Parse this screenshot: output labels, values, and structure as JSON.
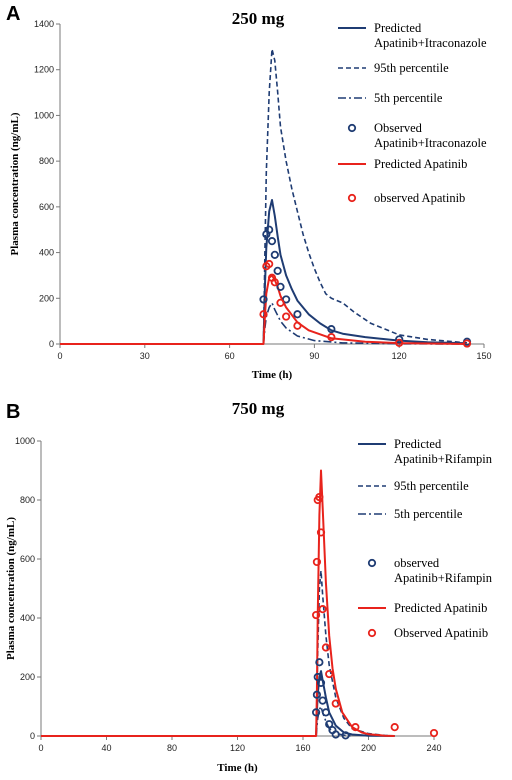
{
  "chart_data": [
    {
      "panel_label": "A",
      "type": "line",
      "title": "250 mg",
      "xlabel": "Time (h)",
      "ylabel": "Plasma concentration (ng/mL)",
      "xlim": [
        0,
        150
      ],
      "ylim": [
        0,
        1400
      ],
      "xticks": [
        0,
        30,
        60,
        90,
        120,
        150
      ],
      "yticks": [
        0,
        200,
        400,
        600,
        800,
        1000,
        1200,
        1400
      ],
      "grid": false,
      "legend_position": "right",
      "series": [
        {
          "name": "Predicted Apatinib+Itraconazole",
          "style": "solid",
          "color": "#1f3c73",
          "x": [
            72,
            72.5,
            73,
            74,
            75,
            76,
            77,
            78,
            80,
            82,
            84,
            88,
            92,
            96,
            100,
            108,
            120,
            130,
            144
          ],
          "y": [
            0,
            250,
            420,
            580,
            630,
            560,
            470,
            390,
            300,
            240,
            190,
            130,
            90,
            60,
            45,
            30,
            15,
            8,
            3
          ]
        },
        {
          "name": "95th percentile",
          "style": "dashed",
          "color": "#1f3c73",
          "x": [
            72,
            72.5,
            73,
            74,
            75,
            76,
            77,
            78,
            80,
            82,
            84,
            86,
            88,
            90,
            92,
            94,
            96,
            100,
            104,
            110,
            120,
            130,
            144
          ],
          "y": [
            0,
            400,
            750,
            1100,
            1290,
            1240,
            1100,
            950,
            800,
            680,
            580,
            480,
            400,
            330,
            270,
            220,
            200,
            180,
            140,
            90,
            40,
            20,
            5
          ]
        },
        {
          "name": "5th percentile",
          "style": "dashdot",
          "color": "#1f3c73",
          "x": [
            72,
            72.5,
            73,
            74,
            75,
            76,
            78,
            80,
            84,
            90,
            100,
            120,
            144
          ],
          "y": [
            0,
            70,
            120,
            160,
            180,
            150,
            100,
            70,
            35,
            15,
            5,
            1,
            0
          ]
        },
        {
          "name": "Observed Apatinib+Itraconazole",
          "style": "markers",
          "color": "#1f3c73",
          "x": [
            72,
            73,
            74,
            75,
            76,
            77,
            78,
            80,
            84,
            96,
            120,
            144
          ],
          "y": [
            195,
            480,
            500,
            450,
            390,
            320,
            250,
            195,
            130,
            65,
            20,
            10
          ]
        },
        {
          "name": "Predicted Apatinib",
          "style": "solid",
          "color": "#e8231c",
          "x": [
            0,
            72,
            72.5,
            73,
            74,
            75,
            76,
            77,
            78,
            80,
            84,
            88,
            96,
            108,
            120,
            144
          ],
          "y": [
            0,
            0,
            120,
            220,
            290,
            300,
            280,
            250,
            210,
            160,
            95,
            60,
            25,
            10,
            4,
            0
          ]
        },
        {
          "name": "observed Apatinib",
          "style": "markers",
          "color": "#e8231c",
          "x": [
            72,
            73,
            74,
            75,
            76,
            78,
            80,
            84,
            96,
            120,
            144
          ],
          "y": [
            130,
            340,
            350,
            290,
            270,
            180,
            120,
            80,
            30,
            5,
            2
          ]
        }
      ]
    },
    {
      "panel_label": "B",
      "type": "line",
      "title": "750 mg",
      "xlabel": "Time (h)",
      "ylabel": "Plasma concentration (ng/mL)",
      "xlim": [
        0,
        240
      ],
      "ylim": [
        0,
        1000
      ],
      "xticks": [
        0,
        40,
        80,
        120,
        160,
        200,
        240
      ],
      "yticks": [
        0,
        200,
        400,
        600,
        800,
        1000
      ],
      "grid": false,
      "legend_position": "right",
      "series": [
        {
          "name": "Predicted Apatinib+Rifampin",
          "style": "solid",
          "color": "#1f3c73",
          "x": [
            168,
            168.5,
            169,
            170,
            171,
            172,
            174,
            176,
            180,
            185,
            190,
            200,
            216
          ],
          "y": [
            0,
            80,
            140,
            200,
            220,
            190,
            130,
            80,
            35,
            12,
            5,
            1,
            0
          ]
        },
        {
          "name": "95th percentile",
          "style": "dashed",
          "color": "#1f3c73",
          "x": [
            168,
            168.5,
            169,
            170,
            171,
            172,
            174,
            176,
            180,
            185,
            190,
            200,
            210,
            216
          ],
          "y": [
            0,
            120,
            280,
            500,
            560,
            480,
            340,
            240,
            130,
            60,
            25,
            8,
            2,
            0
          ]
        },
        {
          "name": "5th percentile",
          "style": "dashdot",
          "color": "#1f3c73",
          "x": [
            168,
            168.5,
            169,
            170,
            171,
            172,
            174,
            176,
            180,
            186,
            190
          ],
          "y": [
            0,
            30,
            60,
            90,
            100,
            80,
            50,
            25,
            8,
            2,
            0
          ]
        },
        {
          "name": "observed Apatinib+Rifampin",
          "style": "markers",
          "color": "#1f3c73",
          "x": [
            168,
            168.5,
            169,
            170,
            171,
            172,
            174,
            176,
            178,
            180,
            186
          ],
          "y": [
            80,
            140,
            200,
            250,
            180,
            120,
            80,
            40,
            20,
            5,
            2
          ]
        },
        {
          "name": "Predicted Apatinib",
          "style": "solid",
          "color": "#e8231c",
          "x": [
            0,
            168,
            168.5,
            169,
            170,
            171,
            172,
            174,
            176,
            178,
            180,
            184,
            190,
            196,
            200,
            210,
            216
          ],
          "y": [
            0,
            0,
            150,
            400,
            750,
            900,
            780,
            520,
            340,
            230,
            160,
            80,
            30,
            12,
            6,
            1,
            0
          ]
        },
        {
          "name": "Observed Apatinib",
          "style": "markers",
          "color": "#e8231c",
          "x": [
            168,
            168.5,
            169,
            170,
            171,
            172,
            174,
            176,
            180,
            192,
            216,
            240
          ],
          "y": [
            410,
            590,
            800,
            810,
            690,
            430,
            300,
            210,
            110,
            30,
            30,
            10
          ]
        }
      ]
    }
  ]
}
